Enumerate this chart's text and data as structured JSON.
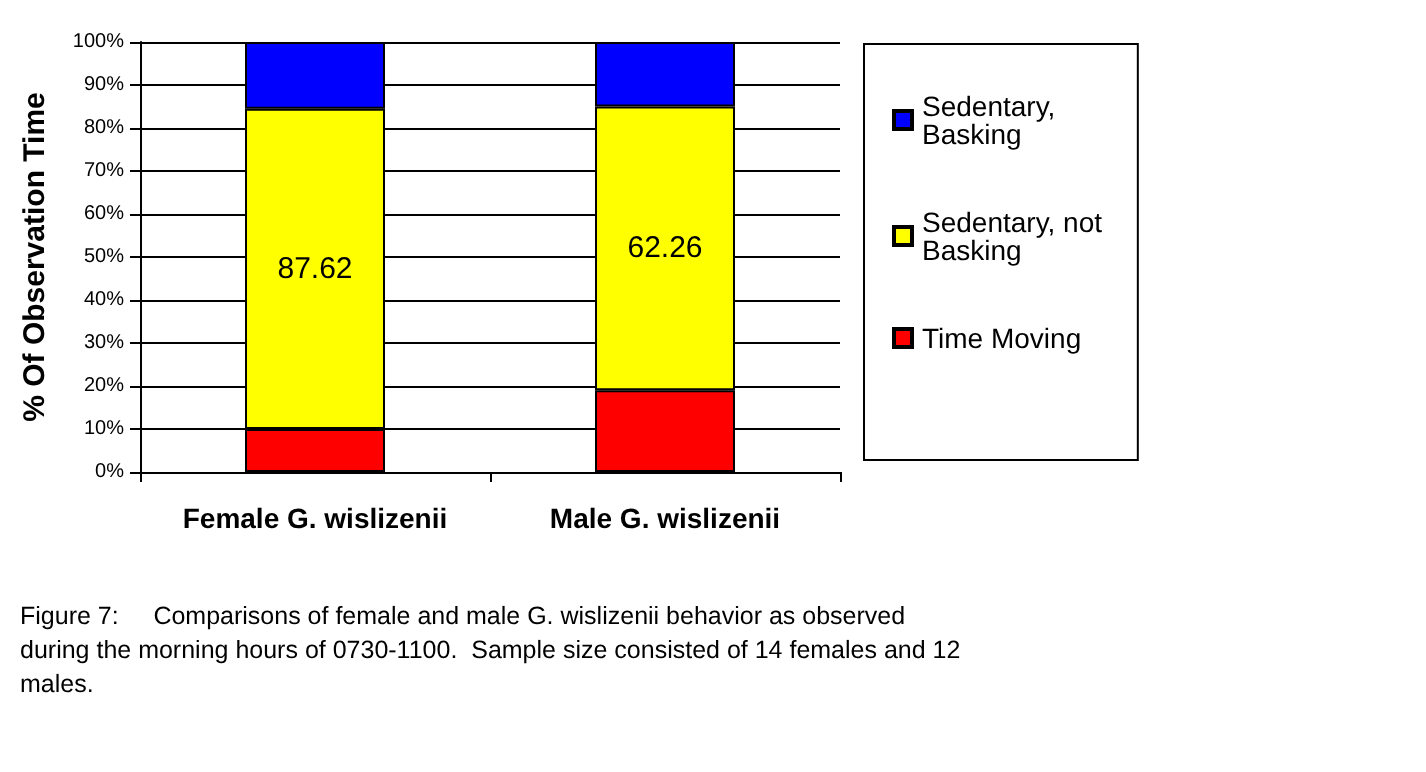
{
  "chart_data": {
    "type": "bar",
    "stacked": true,
    "ylabel": "% Of Observation Time",
    "categories": [
      "Female G. wislizenii",
      "Male G. wislizenii"
    ],
    "series": [
      {
        "name": "Time Moving",
        "color": "#ff0000",
        "values": [
          10,
          19
        ]
      },
      {
        "name": "Sedentary, not Basking",
        "color": "#ffff00",
        "values": [
          74.5,
          66
        ]
      },
      {
        "name": "Sedentary, Basking",
        "color": "#0000ff",
        "values": [
          15.5,
          15
        ]
      }
    ],
    "ylim": [
      0,
      100
    ],
    "yticks": [
      {
        "value": 0,
        "label": "0%"
      },
      {
        "value": 10,
        "label": "10%"
      },
      {
        "value": 20,
        "label": "20%"
      },
      {
        "value": 30,
        "label": "30%"
      },
      {
        "value": 40,
        "label": "40%"
      },
      {
        "value": 50,
        "label": "50%"
      },
      {
        "value": 60,
        "label": "60%"
      },
      {
        "value": 70,
        "label": "70%"
      },
      {
        "value": 80,
        "label": "80%"
      },
      {
        "value": 90,
        "label": "90%"
      },
      {
        "value": 100,
        "label": "100%"
      }
    ],
    "grid": "y",
    "legend": "right",
    "annotations": [
      "87.62",
      "62.26",
      "Figure 7:     Comparisons of female and male G. wislizenii behavior as observed during the morning hours of 0730-1100.  Sample size consisted of 14 females and 12 males."
    ]
  }
}
